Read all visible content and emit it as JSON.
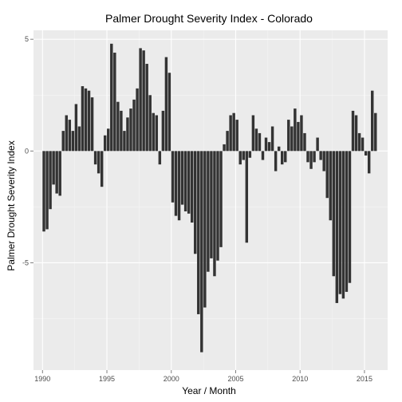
{
  "chart_data": {
    "type": "bar",
    "title": "Palmer Drought Severity Index - Colorado",
    "xlabel": "Year / Month",
    "ylabel": "Palmer Drought Severity Index",
    "x_ticks": [
      "1990",
      "1995",
      "2000",
      "2005",
      "2010",
      "2015"
    ],
    "y_ticks": [
      "-5",
      "0",
      "5"
    ],
    "xlim": [
      1989.3,
      2016.8
    ],
    "ylim": [
      -9.8,
      5.4
    ],
    "grid": true,
    "legend": "none",
    "colors": {
      "panel": "#ebebeb",
      "grid_major": "#ffffff",
      "grid_minor": "#f5f5f5",
      "bar": "#333333"
    },
    "series": [
      {
        "x": [
          1990.0,
          1990.25,
          1990.5,
          1990.75,
          1991.0,
          1991.25,
          1991.5,
          1991.75,
          1992.0,
          1992.25,
          1992.5,
          1992.75,
          1993.0,
          1993.25,
          1993.5,
          1993.75,
          1994.0,
          1994.25,
          1994.5,
          1994.75,
          1995.0,
          1995.25,
          1995.5,
          1995.75,
          1996.0,
          1996.25,
          1996.5,
          1996.75,
          1997.0,
          1997.25,
          1997.5,
          1997.75,
          1998.0,
          1998.25,
          1998.5,
          1998.75,
          1999.0,
          1999.25,
          1999.5,
          1999.75,
          2000.0,
          2000.25,
          2000.5,
          2000.75,
          2001.0,
          2001.25,
          2001.5,
          2001.75,
          2002.0,
          2002.25,
          2002.5,
          2002.75,
          2003.0,
          2003.25,
          2003.5,
          2003.75,
          2004.0,
          2004.25,
          2004.5,
          2004.75,
          2005.0,
          2005.25,
          2005.5,
          2005.75,
          2006.0,
          2006.25,
          2006.5,
          2006.75,
          2007.0,
          2007.25,
          2007.5,
          2007.75,
          2008.0,
          2008.25,
          2008.5,
          2008.75,
          2009.0,
          2009.25,
          2009.5,
          2009.75,
          2010.0,
          2010.25,
          2010.5,
          2010.75,
          2011.0,
          2011.25,
          2011.5,
          2011.75,
          2012.0,
          2012.25,
          2012.5,
          2012.75,
          2013.0,
          2013.25,
          2013.5,
          2013.75,
          2014.0,
          2014.25,
          2014.5,
          2014.75,
          2015.0,
          2015.25,
          2015.5,
          2015.75
        ],
        "values": [
          -3.6,
          -3.5,
          -2.6,
          -1.5,
          -1.9,
          -2.0,
          0.9,
          1.6,
          1.4,
          0.9,
          2.1,
          1.1,
          2.9,
          2.8,
          2.7,
          2.4,
          -0.6,
          -1.0,
          -1.6,
          0.7,
          1.0,
          4.8,
          4.4,
          2.2,
          1.8,
          0.9,
          1.5,
          1.9,
          2.3,
          2.8,
          4.6,
          4.5,
          3.9,
          2.5,
          1.7,
          1.6,
          -0.6,
          1.8,
          4.2,
          3.5,
          -2.3,
          -2.9,
          -3.1,
          -2.4,
          -2.7,
          -2.8,
          -3.2,
          -4.6,
          -7.3,
          -9.0,
          -7.0,
          -5.4,
          -4.8,
          -5.6,
          -4.9,
          -4.3,
          0.3,
          0.9,
          1.6,
          1.7,
          1.4,
          -0.6,
          -0.4,
          -4.1,
          -0.3,
          1.6,
          1.0,
          0.8,
          -0.4,
          0.6,
          0.4,
          1.1,
          -0.9,
          0.2,
          -0.6,
          -0.5,
          1.4,
          1.1,
          1.9,
          1.3,
          1.6,
          0.8,
          -0.5,
          -0.8,
          -0.5,
          0.6,
          -0.4,
          -0.9,
          -2.1,
          -3.1,
          -5.6,
          -6.8,
          -6.4,
          -6.6,
          -6.3,
          -5.9,
          1.8,
          1.6,
          0.8,
          0.6,
          -0.2,
          -1.0,
          2.7,
          1.7
        ]
      }
    ]
  }
}
